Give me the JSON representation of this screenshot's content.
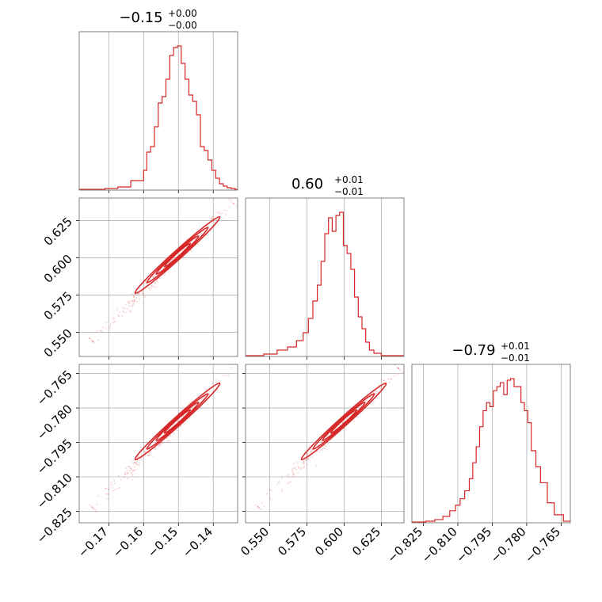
{
  "chart_data": {
    "type": "corner",
    "color": "#d62728",
    "grid": true,
    "parameters": [
      {
        "range": [
          -0.1785,
          -0.133
        ],
        "ticks": [
          -0.17,
          -0.16,
          -0.15,
          -0.14
        ],
        "tick_labels": [
          "−0.17",
          "−0.16",
          "−0.15",
          "−0.14"
        ],
        "title": {
          "value": "−0.15",
          "sup": "+0.00",
          "sub": "−0.00"
        },
        "histogram": {
          "bin_edges": [
            -0.1785,
            -0.1748,
            -0.1711,
            -0.1674,
            -0.1637,
            -0.16,
            -0.1591,
            -0.158,
            -0.1569,
            -0.1558,
            -0.1547,
            -0.1536,
            -0.1525,
            -0.1514,
            -0.1503,
            -0.1492,
            -0.1481,
            -0.147,
            -0.1459,
            -0.1448,
            -0.1437,
            -0.1426,
            -0.1415,
            -0.1404,
            -0.1393,
            -0.1382,
            -0.1371,
            -0.136,
            -0.1349,
            -0.1338,
            -0.133
          ],
          "counts": [
            1,
            1,
            2,
            4,
            12,
            25,
            48,
            55,
            80,
            110,
            118,
            140,
            170,
            180,
            182,
            160,
            140,
            120,
            112,
            95,
            55,
            50,
            38,
            25,
            15,
            8,
            5,
            3,
            2,
            1
          ]
        }
      },
      {
        "range": [
          0.5338,
          0.6402
        ],
        "ticks": [
          0.55,
          0.575,
          0.6,
          0.625
        ],
        "tick_labels": [
          "0.550",
          "0.575",
          "0.600",
          "0.625"
        ],
        "title": {
          "value": "0.60",
          "sup": "+0.01",
          "sub": "−0.01"
        },
        "histogram": {
          "bin_edges": [
            0.5338,
            0.546,
            0.555,
            0.562,
            0.568,
            0.5725,
            0.576,
            0.579,
            0.582,
            0.5845,
            0.587,
            0.5895,
            0.592,
            0.5945,
            0.597,
            0.5995,
            0.602,
            0.6045,
            0.607,
            0.6095,
            0.612,
            0.6145,
            0.617,
            0.62,
            0.625,
            0.6402
          ],
          "counts": [
            1,
            3,
            8,
            12,
            20,
            30,
            48,
            70,
            90,
            120,
            155,
            175,
            158,
            178,
            182,
            140,
            130,
            110,
            75,
            50,
            35,
            18,
            8,
            4,
            1
          ]
        }
      },
      {
        "range": [
          -0.83,
          -0.761
        ],
        "ticks": [
          -0.825,
          -0.81,
          -0.795,
          -0.78,
          -0.765
        ],
        "tick_labels": [
          "−0.825",
          "−0.810",
          "−0.795",
          "−0.780",
          "−0.765"
        ],
        "title": {
          "value": "−0.79",
          "sup": "+0.01",
          "sub": "−0.01"
        },
        "histogram": {
          "bin_edges": [
            -0.83,
            -0.824,
            -0.82,
            -0.8165,
            -0.8135,
            -0.811,
            -0.809,
            -0.807,
            -0.805,
            -0.8035,
            -0.802,
            -0.8005,
            -0.799,
            -0.7975,
            -0.796,
            -0.7945,
            -0.793,
            -0.7915,
            -0.79,
            -0.7885,
            -0.787,
            -0.7855,
            -0.784,
            -0.7825,
            -0.781,
            -0.7795,
            -0.778,
            -0.776,
            -0.774,
            -0.771,
            -0.768,
            -0.764,
            -0.761
          ],
          "counts": [
            1,
            2,
            4,
            8,
            15,
            22,
            30,
            40,
            55,
            75,
            95,
            120,
            140,
            150,
            145,
            165,
            170,
            175,
            160,
            178,
            180,
            170,
            170,
            150,
            140,
            125,
            90,
            70,
            50,
            25,
            10,
            2
          ]
        }
      }
    ],
    "scatter_panels": [
      {
        "row": 1,
        "col": 0,
        "x_param": 0,
        "y_param": 1
      },
      {
        "row": 2,
        "col": 0,
        "x_param": 0,
        "y_param": 2
      },
      {
        "row": 2,
        "col": 1,
        "x_param": 1,
        "y_param": 2
      }
    ],
    "x_axis_label_rows": [
      2,
      2,
      2
    ],
    "y_axis_label_cols": [
      0
    ]
  }
}
